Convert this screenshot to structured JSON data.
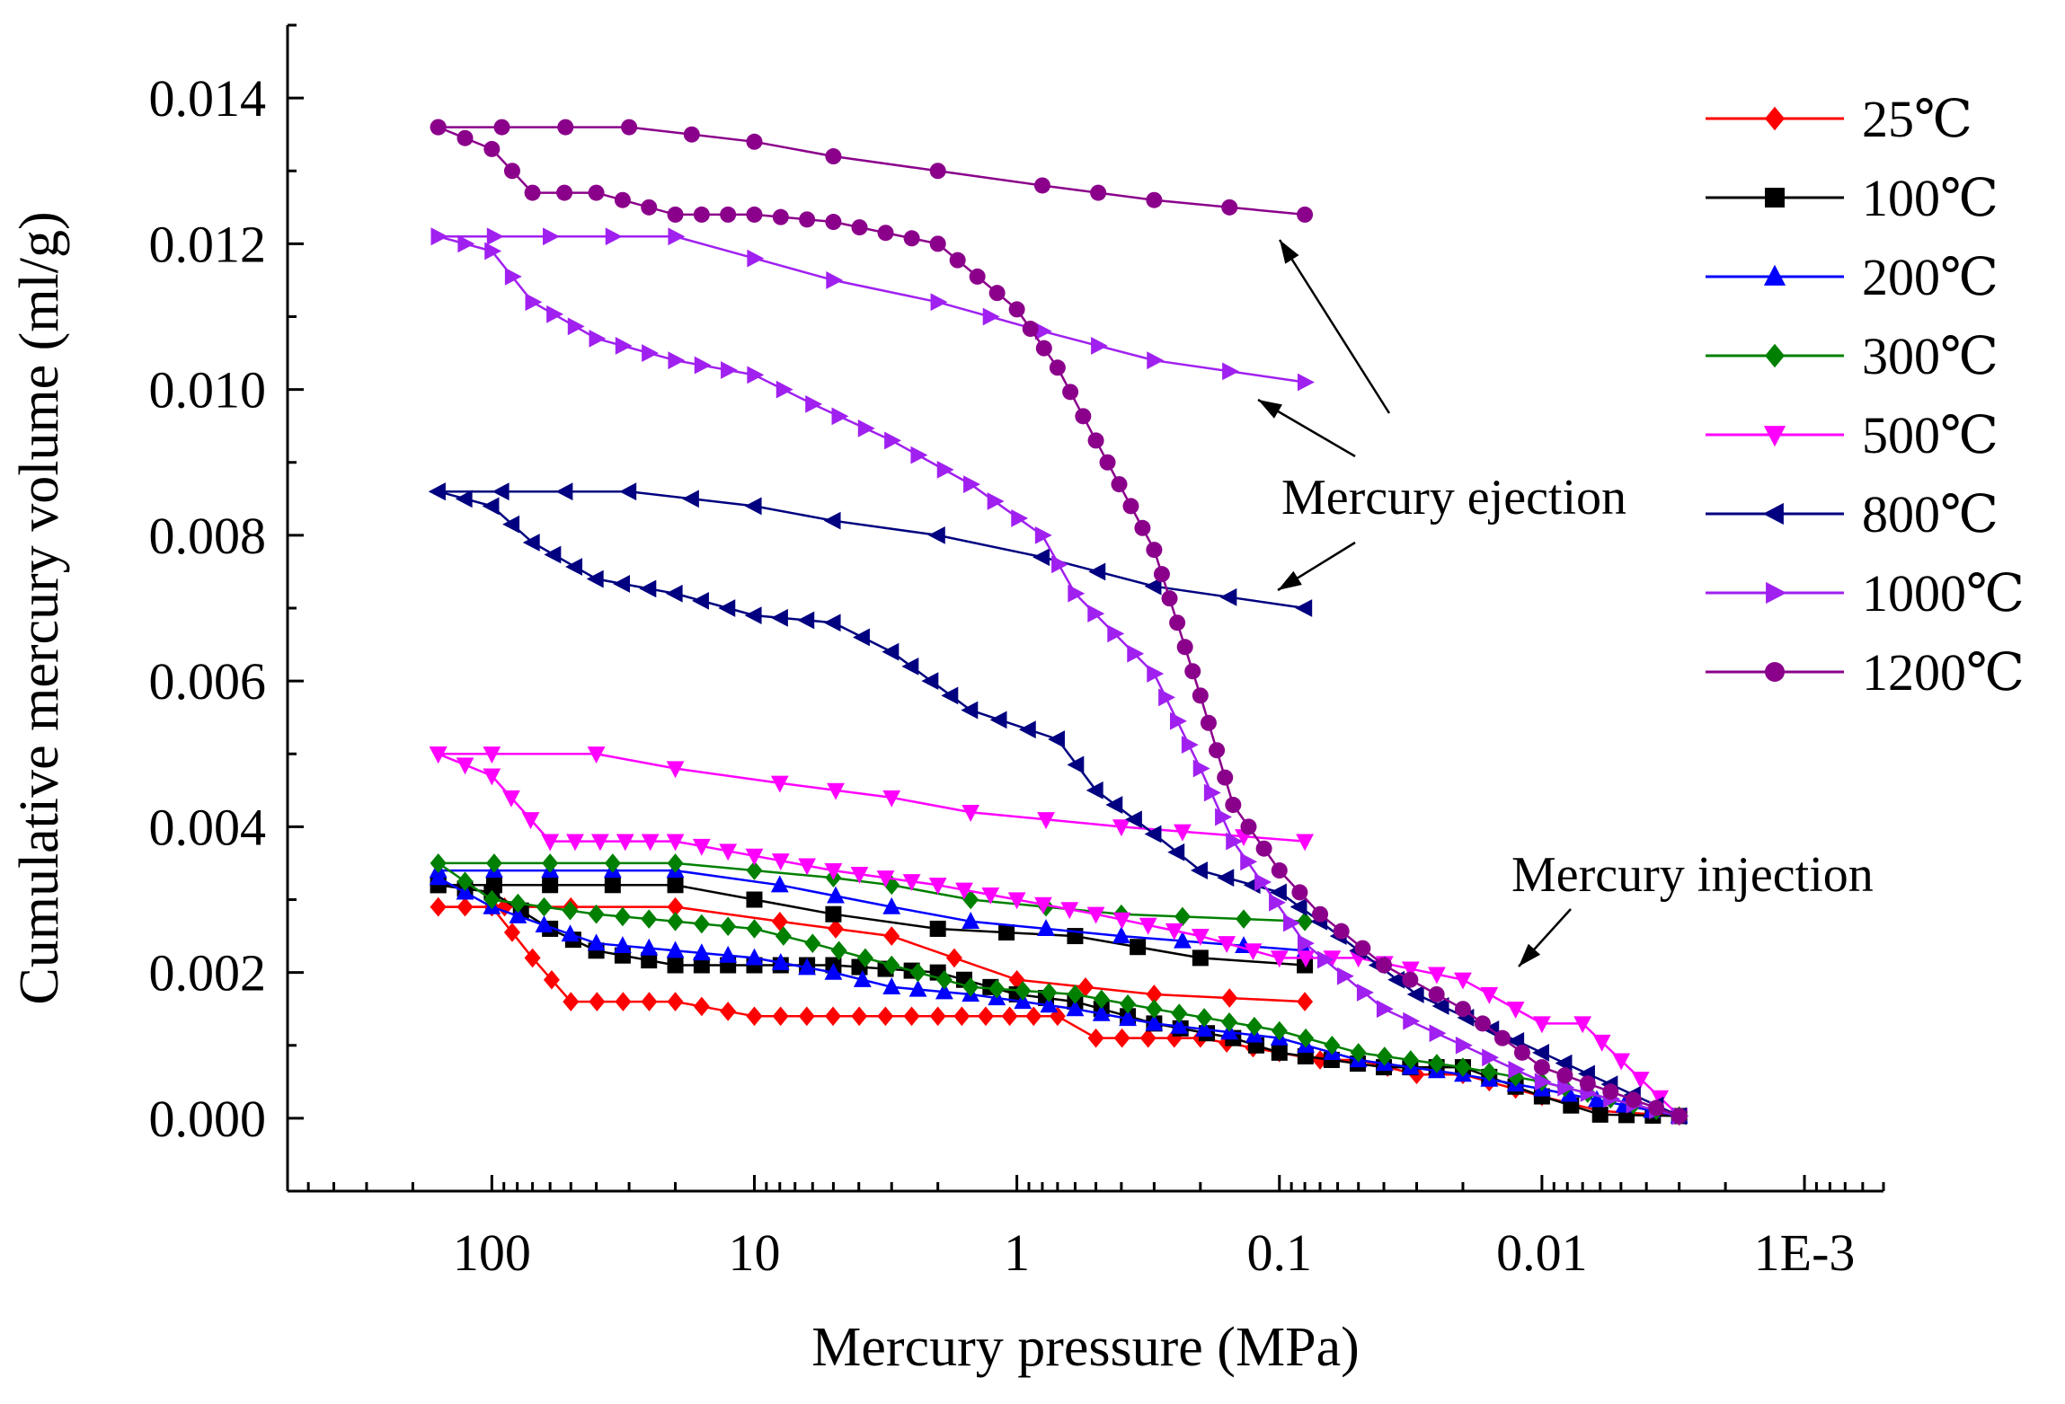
{
  "chart_data": {
    "type": "line",
    "xscale": "log",
    "xreversed": true,
    "xlabel": "Mercury pressure (MPa)",
    "ylabel": "Cumulative mercury volume (ml/g)",
    "xlim": [
      600,
      0.0005
    ],
    "ylim": [
      -0.001,
      0.015
    ],
    "xticks": [
      {
        "value": 100,
        "label": "100"
      },
      {
        "value": 10,
        "label": "10"
      },
      {
        "value": 1,
        "label": "1"
      },
      {
        "value": 0.1,
        "label": "0.1"
      },
      {
        "value": 0.01,
        "label": "0.01"
      },
      {
        "value": 0.001,
        "label": "1E-3"
      }
    ],
    "yticks": [
      {
        "value": 0.0,
        "label": "0.000"
      },
      {
        "value": 0.002,
        "label": "0.002"
      },
      {
        "value": 0.004,
        "label": "0.004"
      },
      {
        "value": 0.006,
        "label": "0.006"
      },
      {
        "value": 0.008,
        "label": "0.008"
      },
      {
        "value": 0.01,
        "label": "0.010"
      },
      {
        "value": 0.012,
        "label": "0.012"
      },
      {
        "value": 0.014,
        "label": "0.014"
      }
    ],
    "annotations": [
      {
        "text": "Mercury ejection"
      },
      {
        "text": "Mercury injection"
      }
    ],
    "series": [
      {
        "name": "25℃",
        "color": "#ff0000",
        "marker": "diamond",
        "injection": [
          [
            0.003,
            3e-05
          ],
          [
            0.006,
            0.0001
          ],
          [
            0.01,
            0.0003
          ],
          [
            0.02,
            0.0006
          ],
          [
            0.03,
            0.0006
          ],
          [
            0.05,
            0.0008
          ],
          [
            0.07,
            0.0008
          ],
          [
            0.1,
            0.0009
          ],
          [
            0.2,
            0.0011
          ],
          [
            0.5,
            0.0011
          ],
          [
            0.7,
            0.0014
          ],
          [
            2,
            0.0014
          ],
          [
            10,
            0.0014
          ],
          [
            20,
            0.0016
          ],
          [
            50,
            0.0016
          ],
          [
            70,
            0.0022
          ],
          [
            100,
            0.0029
          ],
          [
            160,
            0.0029
          ]
        ],
        "ejection": [
          [
            0.08,
            0.0016
          ],
          [
            0.3,
            0.0017
          ],
          [
            1,
            0.0019
          ],
          [
            3,
            0.0025
          ],
          [
            8,
            0.0027
          ],
          [
            20,
            0.0029
          ],
          [
            50,
            0.0029
          ],
          [
            160,
            0.0029
          ]
        ]
      },
      {
        "name": "100℃",
        "color": "#000000",
        "marker": "square",
        "injection": [
          [
            0.003,
            3e-05
          ],
          [
            0.006,
            5e-05
          ],
          [
            0.01,
            0.0003
          ],
          [
            0.02,
            0.0007
          ],
          [
            0.04,
            0.0007
          ],
          [
            0.1,
            0.0009
          ],
          [
            0.15,
            0.0011
          ],
          [
            0.3,
            0.0013
          ],
          [
            0.6,
            0.0016
          ],
          [
            1,
            0.0017
          ],
          [
            2,
            0.002
          ],
          [
            5,
            0.0021
          ],
          [
            10,
            0.0021
          ],
          [
            20,
            0.0021
          ],
          [
            40,
            0.0023
          ],
          [
            60,
            0.0026
          ],
          [
            100,
            0.0031
          ],
          [
            160,
            0.0032
          ]
        ],
        "ejection": [
          [
            0.08,
            0.0021
          ],
          [
            0.2,
            0.0022
          ],
          [
            0.6,
            0.0025
          ],
          [
            2,
            0.0026
          ],
          [
            5,
            0.0028
          ],
          [
            10,
            0.003
          ],
          [
            20,
            0.0032
          ],
          [
            60,
            0.0032
          ],
          [
            160,
            0.0032
          ]
        ]
      },
      {
        "name": "200℃",
        "color": "#0000ff",
        "marker": "triangle-up",
        "injection": [
          [
            0.003,
            3e-05
          ],
          [
            0.01,
            0.0004
          ],
          [
            0.02,
            0.0006
          ],
          [
            0.05,
            0.0008
          ],
          [
            0.1,
            0.0011
          ],
          [
            0.3,
            0.0013
          ],
          [
            0.6,
            0.0015
          ],
          [
            1.5,
            0.0017
          ],
          [
            3,
            0.0018
          ],
          [
            5,
            0.002
          ],
          [
            10,
            0.0022
          ],
          [
            20,
            0.0023
          ],
          [
            40,
            0.0024
          ],
          [
            100,
            0.0029
          ],
          [
            160,
            0.0033
          ]
        ],
        "ejection": [
          [
            0.08,
            0.0023
          ],
          [
            0.4,
            0.0025
          ],
          [
            1.5,
            0.0027
          ],
          [
            3,
            0.0029
          ],
          [
            8,
            0.0032
          ],
          [
            20,
            0.0034
          ],
          [
            60,
            0.0034
          ],
          [
            160,
            0.0034
          ]
        ]
      },
      {
        "name": "300℃",
        "color": "#008000",
        "marker": "diamond",
        "injection": [
          [
            0.003,
            3e-05
          ],
          [
            0.01,
            0.0005
          ],
          [
            0.02,
            0.0007
          ],
          [
            0.05,
            0.0009
          ],
          [
            0.1,
            0.0012
          ],
          [
            0.3,
            0.0015
          ],
          [
            0.6,
            0.0017
          ],
          [
            1.5,
            0.0018
          ],
          [
            3,
            0.0021
          ],
          [
            6,
            0.0024
          ],
          [
            10,
            0.0026
          ],
          [
            20,
            0.0027
          ],
          [
            40,
            0.0028
          ],
          [
            100,
            0.003
          ],
          [
            160,
            0.0035
          ]
        ],
        "ejection": [
          [
            0.08,
            0.0027
          ],
          [
            0.4,
            0.0028
          ],
          [
            1.5,
            0.003
          ],
          [
            3,
            0.0032
          ],
          [
            5,
            0.0033
          ],
          [
            20,
            0.0035
          ],
          [
            60,
            0.0035
          ],
          [
            160,
            0.0035
          ]
        ]
      },
      {
        "name": "500℃",
        "color": "#ff00ff",
        "marker": "triangle-down",
        "injection": [
          [
            0.003,
            3e-05
          ],
          [
            0.007,
            0.0013
          ],
          [
            0.01,
            0.0013
          ],
          [
            0.02,
            0.0019
          ],
          [
            0.05,
            0.0022
          ],
          [
            0.1,
            0.0022
          ],
          [
            0.2,
            0.0025
          ],
          [
            0.5,
            0.0028
          ],
          [
            1,
            0.003
          ],
          [
            2,
            0.0032
          ],
          [
            5,
            0.0034
          ],
          [
            10,
            0.0036
          ],
          [
            20,
            0.0038
          ],
          [
            60,
            0.0038
          ],
          [
            100,
            0.0047
          ],
          [
            160,
            0.005
          ]
        ],
        "ejection": [
          [
            0.08,
            0.0038
          ],
          [
            0.4,
            0.004
          ],
          [
            1.5,
            0.0042
          ],
          [
            3,
            0.0044
          ],
          [
            8,
            0.0046
          ],
          [
            20,
            0.0048
          ],
          [
            40,
            0.005
          ],
          [
            100,
            0.005
          ],
          [
            160,
            0.005
          ]
        ]
      },
      {
        "name": "800℃",
        "color": "#000080",
        "marker": "triangle-left",
        "injection": [
          [
            0.003,
            3e-05
          ],
          [
            0.01,
            0.0009
          ],
          [
            0.03,
            0.0017
          ],
          [
            0.07,
            0.0027
          ],
          [
            0.1,
            0.0031
          ],
          [
            0.2,
            0.0034
          ],
          [
            0.3,
            0.0039
          ],
          [
            0.5,
            0.0045
          ],
          [
            0.7,
            0.0052
          ],
          [
            1.5,
            0.0056
          ],
          [
            3,
            0.0064
          ],
          [
            5,
            0.0068
          ],
          [
            10,
            0.0069
          ],
          [
            20,
            0.0072
          ],
          [
            40,
            0.0074
          ],
          [
            70,
            0.0079
          ],
          [
            100,
            0.0084
          ],
          [
            160,
            0.0086
          ]
        ],
        "ejection": [
          [
            0.08,
            0.007
          ],
          [
            0.3,
            0.0073
          ],
          [
            0.8,
            0.0077
          ],
          [
            2,
            0.008
          ],
          [
            5,
            0.0082
          ],
          [
            10,
            0.0084
          ],
          [
            30,
            0.0086
          ],
          [
            160,
            0.0086
          ]
        ]
      },
      {
        "name": "1000℃",
        "color": "#a020f0",
        "marker": "triangle-right",
        "injection": [
          [
            0.003,
            3e-05
          ],
          [
            0.01,
            0.0005
          ],
          [
            0.02,
            0.001
          ],
          [
            0.04,
            0.0015
          ],
          [
            0.08,
            0.0024
          ],
          [
            0.15,
            0.0038
          ],
          [
            0.2,
            0.0048
          ],
          [
            0.3,
            0.0061
          ],
          [
            0.6,
            0.0072
          ],
          [
            0.8,
            0.008
          ],
          [
            1.5,
            0.0087
          ],
          [
            3,
            0.0093
          ],
          [
            6,
            0.0098
          ],
          [
            10,
            0.0102
          ],
          [
            20,
            0.0104
          ],
          [
            40,
            0.0107
          ],
          [
            70,
            0.0112
          ],
          [
            100,
            0.0119
          ],
          [
            160,
            0.0121
          ]
        ],
        "ejection": [
          [
            0.08,
            0.0101
          ],
          [
            0.3,
            0.0104
          ],
          [
            0.8,
            0.0108
          ],
          [
            2,
            0.0112
          ],
          [
            5,
            0.0115
          ],
          [
            10,
            0.0118
          ],
          [
            20,
            0.0121
          ],
          [
            60,
            0.0121
          ],
          [
            160,
            0.0121
          ]
        ]
      },
      {
        "name": "1200℃",
        "color": "#8b008b",
        "marker": "circle",
        "injection": [
          [
            0.003,
            3e-05
          ],
          [
            0.01,
            0.0007
          ],
          [
            0.02,
            0.0015
          ],
          [
            0.04,
            0.0021
          ],
          [
            0.07,
            0.0028
          ],
          [
            0.1,
            0.0034
          ],
          [
            0.15,
            0.0043
          ],
          [
            0.2,
            0.0058
          ],
          [
            0.3,
            0.0078
          ],
          [
            0.5,
            0.0093
          ],
          [
            0.7,
            0.0103
          ],
          [
            1,
            0.0111
          ],
          [
            2,
            0.012
          ],
          [
            5,
            0.0123
          ],
          [
            10,
            0.0124
          ],
          [
            20,
            0.0124
          ],
          [
            40,
            0.0127
          ],
          [
            70,
            0.0127
          ],
          [
            100,
            0.0133
          ],
          [
            160,
            0.0136
          ]
        ],
        "ejection": [
          [
            0.08,
            0.0124
          ],
          [
            0.3,
            0.0126
          ],
          [
            0.8,
            0.0128
          ],
          [
            2,
            0.013
          ],
          [
            5,
            0.0132
          ],
          [
            10,
            0.0134
          ],
          [
            30,
            0.0136
          ],
          [
            160,
            0.0136
          ]
        ]
      }
    ]
  }
}
